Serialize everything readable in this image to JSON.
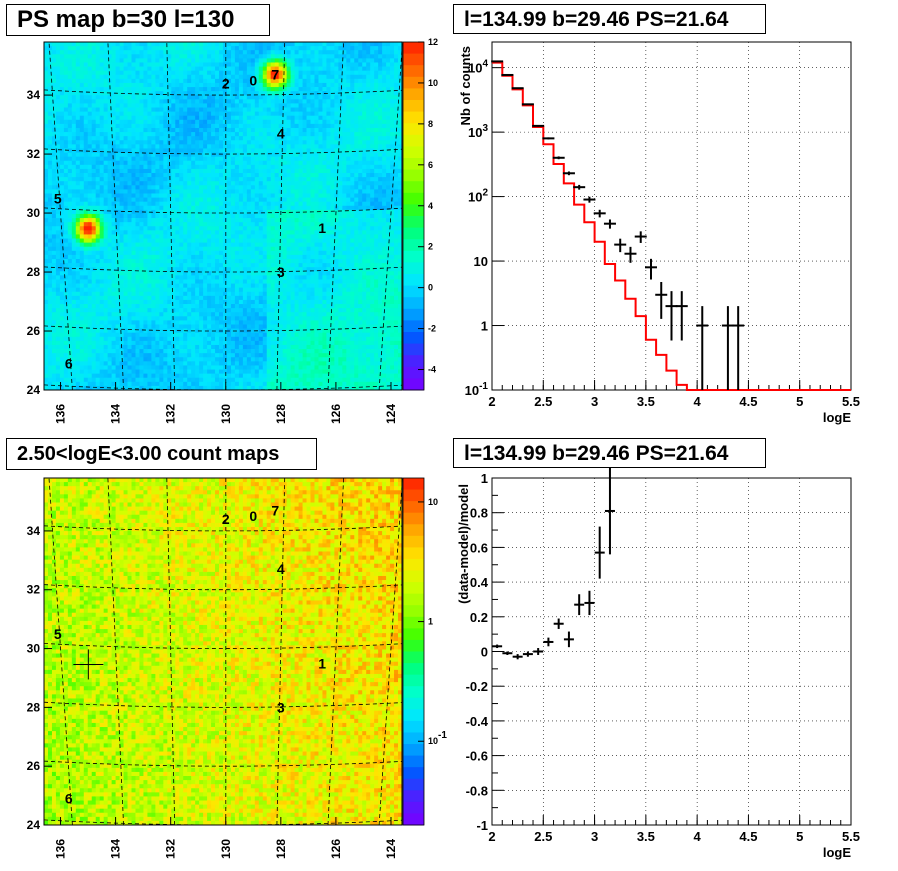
{
  "titles": {
    "map1": "PS map b=30 l=130",
    "spectrum": "l=134.99 b=29.46 PS=21.64",
    "map2": "2.50<logE<3.00 count maps",
    "residual": "l=134.99 b=29.46 PS=21.64"
  },
  "colors": {
    "model_line": "#ff0000",
    "data_points": "#000000",
    "grid": "#000000"
  },
  "chart_data": [
    {
      "type": "heatmap",
      "name": "ps-map",
      "title": "PS map b=30 l=130",
      "x_ticks": [
        "136",
        "134",
        "132",
        "130",
        "128",
        "126",
        "124"
      ],
      "y_ticks": [
        "24",
        "26",
        "28",
        "30",
        "32",
        "34"
      ],
      "xlim": [
        136.6,
        123.6
      ],
      "ylim": [
        24,
        35.8
      ],
      "colorbar_ticks": [
        "12",
        "10",
        "8",
        "6",
        "4",
        "2",
        "0",
        "-2",
        "-4"
      ],
      "colorbar_range": [
        -5,
        12
      ],
      "sources": [
        {
          "label": "0",
          "l": 129.0,
          "b": 34.5
        },
        {
          "label": "1",
          "l": 126.5,
          "b": 29.5
        },
        {
          "label": "2",
          "l": 130.0,
          "b": 34.4
        },
        {
          "label": "3",
          "l": 128.0,
          "b": 28.0
        },
        {
          "label": "4",
          "l": 128.0,
          "b": 32.7
        },
        {
          "label": "5",
          "l": 136.1,
          "b": 30.5
        },
        {
          "label": "6",
          "l": 135.7,
          "b": 24.9
        },
        {
          "label": "7",
          "l": 128.2,
          "b": 34.7
        }
      ],
      "hotspots": [
        {
          "l": 134.99,
          "b": 29.46,
          "value": 12
        },
        {
          "l": 128.2,
          "b": 34.7,
          "value": 11
        }
      ]
    },
    {
      "type": "line",
      "name": "spectrum",
      "title": "l=134.99 b=29.46 PS=21.64",
      "xlabel": "logE",
      "ylabel": "Nb of counts",
      "x_ticks": [
        "2",
        "2.5",
        "3",
        "3.5",
        "4",
        "4.5",
        "5",
        "5.5"
      ],
      "y_ticks": [
        "10^-1",
        "1",
        "10",
        "10^2",
        "10^3",
        "10^4"
      ],
      "xlim": [
        2,
        5.5
      ],
      "ylim": [
        0.1,
        25000
      ],
      "yscale": "log",
      "grid": true,
      "series": [
        {
          "type": "step",
          "bin_edges": [
            2,
            2.1,
            2.2,
            2.3,
            2.4,
            2.5,
            2.6,
            2.7,
            2.8,
            2.9,
            3.0,
            3.1,
            3.2,
            3.3,
            3.4,
            3.5,
            3.6,
            3.7,
            3.8,
            3.9,
            4.0,
            4.1,
            4.2,
            4.3,
            4.4,
            4.5,
            5.5
          ],
          "values": [
            12000,
            7500,
            4600,
            2600,
            1200,
            650,
            320,
            160,
            75,
            40,
            20,
            9,
            5,
            2.6,
            1.4,
            0.6,
            0.35,
            0.2,
            0.12,
            0.1,
            0.1,
            0.1,
            0.1,
            0.1,
            0.1,
            0.1
          ]
        },
        {
          "type": "points",
          "x": [
            2.05,
            2.15,
            2.25,
            2.35,
            2.45,
            2.55,
            2.65,
            2.75,
            2.85,
            2.95,
            3.05,
            3.15,
            3.25,
            3.35,
            3.45,
            3.55,
            3.65,
            3.75,
            3.85,
            4.05,
            4.3,
            4.4
          ],
          "y": [
            12500,
            7700,
            4800,
            2700,
            1250,
            800,
            400,
            230,
            140,
            90,
            55,
            38,
            18,
            13,
            24,
            8,
            3,
            2,
            2,
            1,
            1,
            1
          ]
        }
      ]
    },
    {
      "type": "heatmap",
      "name": "count-map",
      "title": "2.50<logE<3.00 count maps",
      "x_ticks": [
        "136",
        "134",
        "132",
        "130",
        "128",
        "126",
        "124"
      ],
      "y_ticks": [
        "24",
        "26",
        "28",
        "30",
        "32",
        "34"
      ],
      "xlim": [
        136.6,
        123.6
      ],
      "ylim": [
        24,
        35.8
      ],
      "colorbar_ticks": [
        "10",
        "1",
        "10^-1"
      ],
      "colorbar_scale": "log",
      "marker": {
        "l": 134.99,
        "b": 29.46
      }
    },
    {
      "type": "scatter",
      "name": "residual",
      "title": "l=134.99 b=29.46 PS=21.64",
      "xlabel": "logE",
      "ylabel": "(data-model)/model",
      "x_ticks": [
        "2",
        "2.5",
        "3",
        "3.5",
        "4",
        "4.5",
        "5",
        "5.5"
      ],
      "y_ticks": [
        "-1",
        "-0.8",
        "-0.6",
        "-0.4",
        "-0.2",
        "0",
        "0.2",
        "0.4",
        "0.6",
        "0.8",
        "1"
      ],
      "xlim": [
        2,
        5.5
      ],
      "ylim": [
        -1,
        1
      ],
      "grid": true,
      "x": [
        2.05,
        2.15,
        2.25,
        2.35,
        2.45,
        2.55,
        2.65,
        2.75,
        2.85,
        2.95,
        3.05,
        3.15
      ],
      "y": [
        0.03,
        -0.01,
        -0.03,
        -0.015,
        0.0,
        0.055,
        0.16,
        0.07,
        0.27,
        0.28,
        0.57,
        0.81
      ],
      "yerr": [
        0.01,
        0.01,
        0.015,
        0.015,
        0.02,
        0.025,
        0.03,
        0.045,
        0.06,
        0.07,
        0.15,
        0.25
      ]
    }
  ]
}
